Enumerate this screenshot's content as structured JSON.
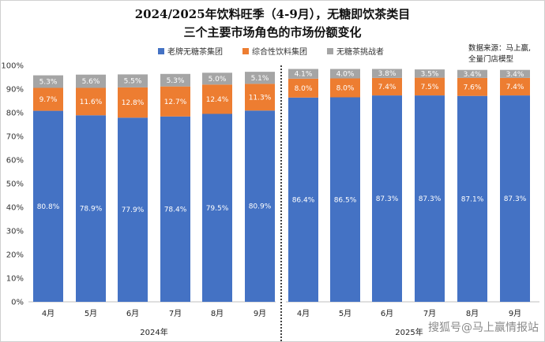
{
  "title_line1": "2024/2025年饮料旺季（4-9月），无糖即饮茶类目",
  "title_line2": "三个主要市场角色的市场份额变化",
  "source_line1": "数据来源：马上赢,",
  "source_line2": "全量门店模型",
  "watermark": "搜狐号@马上赢情报站",
  "chart_data": {
    "type": "bar",
    "stacked": true,
    "categories": [
      "4月",
      "5月",
      "6月",
      "7月",
      "8月",
      "9月",
      "4月",
      "5月",
      "6月",
      "7月",
      "8月",
      "9月"
    ],
    "groups": [
      {
        "label": "2024年",
        "start": 0,
        "end": 5
      },
      {
        "label": "2025年",
        "start": 6,
        "end": 11
      }
    ],
    "series": [
      {
        "name": "老牌无糖茶集团",
        "color": "#4472C4",
        "label_color": "#ffffff",
        "values": [
          80.8,
          78.9,
          77.9,
          78.4,
          79.5,
          80.9,
          86.4,
          86.5,
          87.3,
          87.3,
          87.1,
          87.3
        ]
      },
      {
        "name": "综合性饮料集团",
        "color": "#ED7D31",
        "label_color": "#ffffff",
        "values": [
          9.7,
          11.6,
          12.8,
          12.7,
          12.4,
          11.3,
          8.0,
          8.0,
          7.4,
          7.5,
          7.6,
          7.4
        ]
      },
      {
        "name": "无糖茶挑战者",
        "color": "#A5A5A5",
        "label_color": "#ffffff",
        "values": [
          5.3,
          5.6,
          5.5,
          5.3,
          5.0,
          5.1,
          4.1,
          4.0,
          3.8,
          3.5,
          3.4,
          3.4
        ]
      }
    ],
    "value_suffix": "%",
    "ylim": [
      0,
      100
    ],
    "yticks": [
      0,
      10,
      20,
      30,
      40,
      50,
      60,
      70,
      80,
      90,
      100
    ],
    "ytick_labels": [
      "0%",
      "10%",
      "20%",
      "30%",
      "40%",
      "50%",
      "60%",
      "70%",
      "80%",
      "90%",
      "100%"
    ],
    "legend_position": "top",
    "grid": false
  }
}
